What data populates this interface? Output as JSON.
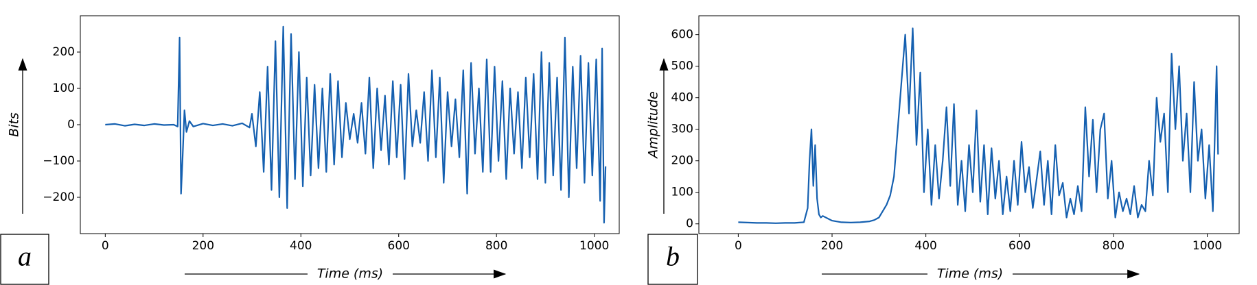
{
  "chart_data": [
    {
      "type": "line",
      "panel_label": "a",
      "ylabel": "Bits",
      "xlabel": "Time (ms)",
      "color": "#1560b0",
      "xlim": [
        -51,
        1051
      ],
      "ylim": [
        -300,
        300
      ],
      "xticks": [
        0,
        200,
        400,
        600,
        800,
        1000
      ],
      "yticks": [
        {
          "value": -200,
          "label": "−200"
        },
        {
          "value": -100,
          "label": "−100"
        },
        0,
        100,
        200
      ],
      "x": [
        0,
        20,
        40,
        60,
        80,
        100,
        120,
        140,
        148,
        152,
        155,
        158,
        162,
        166,
        172,
        180,
        200,
        220,
        240,
        260,
        280,
        295,
        300,
        308,
        316,
        324,
        332,
        340,
        348,
        356,
        364,
        372,
        380,
        388,
        396,
        404,
        412,
        420,
        428,
        436,
        444,
        452,
        460,
        468,
        476,
        484,
        492,
        500,
        508,
        516,
        524,
        532,
        540,
        548,
        556,
        564,
        572,
        580,
        588,
        596,
        604,
        612,
        620,
        628,
        636,
        644,
        652,
        660,
        668,
        676,
        684,
        692,
        700,
        708,
        716,
        724,
        732,
        740,
        748,
        756,
        764,
        772,
        780,
        788,
        796,
        804,
        812,
        820,
        828,
        836,
        844,
        852,
        860,
        868,
        876,
        884,
        892,
        900,
        908,
        916,
        924,
        932,
        940,
        948,
        956,
        964,
        972,
        980,
        988,
        996,
        1004,
        1012,
        1016,
        1020,
        1023
      ],
      "values": [
        0,
        2,
        -3,
        1,
        -2,
        2,
        -1,
        0,
        -5,
        240,
        -190,
        -95,
        40,
        -20,
        10,
        -5,
        3,
        -2,
        2,
        -3,
        4,
        -8,
        30,
        -60,
        90,
        -130,
        160,
        -180,
        230,
        -200,
        270,
        -230,
        250,
        -150,
        200,
        -170,
        130,
        -140,
        110,
        -120,
        100,
        -130,
        140,
        -110,
        120,
        -90,
        60,
        -40,
        30,
        -50,
        60,
        -80,
        130,
        -120,
        100,
        -70,
        80,
        -110,
        120,
        -90,
        110,
        -150,
        140,
        -60,
        40,
        -50,
        90,
        -100,
        150,
        -90,
        130,
        -160,
        90,
        -60,
        70,
        -90,
        150,
        -190,
        170,
        -80,
        100,
        -130,
        180,
        -130,
        160,
        -100,
        120,
        -150,
        100,
        -80,
        90,
        -120,
        130,
        -90,
        140,
        -150,
        200,
        -160,
        170,
        -140,
        130,
        -180,
        240,
        -200,
        160,
        -120,
        190,
        -160,
        170,
        -140,
        180,
        -210,
        210,
        -270,
        -115
      ]
    },
    {
      "type": "line",
      "panel_label": "b",
      "ylabel": "Amplitude",
      "xlabel": "Time (ms)",
      "color": "#1560b0",
      "xlim": [
        -84,
        1068
      ],
      "ylim": [
        -31,
        660
      ],
      "xticks": [
        0,
        200,
        400,
        600,
        800,
        1000
      ],
      "yticks": [
        0,
        100,
        200,
        300,
        400,
        500,
        600
      ],
      "x": [
        0,
        20,
        40,
        60,
        80,
        100,
        120,
        140,
        148,
        152,
        156,
        160,
        164,
        168,
        172,
        176,
        180,
        200,
        220,
        240,
        260,
        280,
        290,
        300,
        308,
        316,
        324,
        332,
        340,
        348,
        356,
        364,
        372,
        380,
        388,
        396,
        404,
        412,
        420,
        428,
        436,
        444,
        452,
        460,
        468,
        476,
        484,
        492,
        500,
        508,
        516,
        524,
        532,
        540,
        548,
        556,
        564,
        572,
        580,
        588,
        596,
        604,
        612,
        620,
        628,
        636,
        644,
        652,
        660,
        668,
        676,
        684,
        692,
        700,
        708,
        716,
        724,
        732,
        740,
        748,
        756,
        764,
        772,
        780,
        788,
        796,
        804,
        812,
        820,
        828,
        836,
        844,
        852,
        860,
        868,
        876,
        884,
        892,
        900,
        908,
        916,
        924,
        932,
        940,
        948,
        956,
        964,
        972,
        980,
        988,
        996,
        1004,
        1012,
        1020,
        1023
      ],
      "values": [
        5,
        4,
        3,
        3,
        2,
        3,
        3,
        5,
        50,
        200,
        300,
        120,
        250,
        80,
        30,
        20,
        25,
        10,
        5,
        4,
        5,
        8,
        12,
        20,
        40,
        60,
        90,
        150,
        300,
        450,
        600,
        350,
        620,
        250,
        480,
        100,
        300,
        60,
        250,
        80,
        200,
        370,
        120,
        380,
        60,
        200,
        40,
        250,
        100,
        360,
        70,
        250,
        30,
        240,
        80,
        200,
        30,
        150,
        40,
        200,
        60,
        260,
        100,
        180,
        50,
        140,
        230,
        60,
        200,
        30,
        250,
        90,
        130,
        20,
        80,
        30,
        120,
        40,
        370,
        150,
        330,
        100,
        300,
        350,
        80,
        200,
        20,
        100,
        40,
        80,
        30,
        120,
        20,
        60,
        40,
        200,
        90,
        400,
        260,
        350,
        100,
        540,
        300,
        500,
        200,
        350,
        100,
        450,
        200,
        300,
        80,
        250,
        40,
        500,
        220
      ]
    }
  ]
}
